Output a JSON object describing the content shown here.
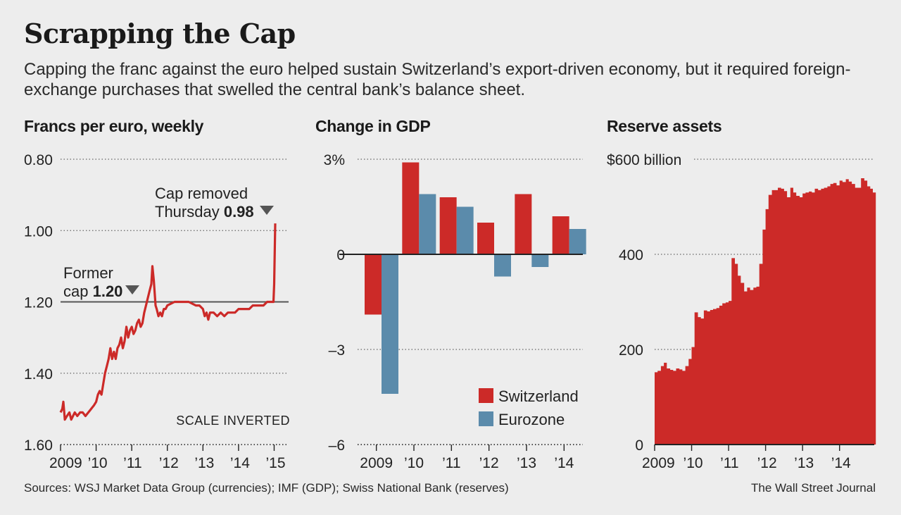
{
  "title": "Scrapping the Cap",
  "subtitle": "Capping the franc against the euro helped sustain Switzerland’s export-driven economy, but it required foreign-exchange purchases that swelled the central bank’s balance sheet.",
  "colors": {
    "switzerland": "#cc2a28",
    "eurozone": "#5b8bab",
    "axis": "#222222",
    "grid": "#666666",
    "cap_line": "#555555"
  },
  "footer": {
    "source": "Sources: WSJ Market Data Group (currencies); IMF (GDP); Swiss National Bank (reserves)",
    "credit": "The Wall Street Journal"
  },
  "chart_data": [
    {
      "id": "francs",
      "type": "line",
      "title": "Francs per euro, weekly",
      "y_inverted": true,
      "ylim": [
        0.8,
        1.6
      ],
      "yticks": [
        {
          "value": 0.8,
          "label": "0.80"
        },
        {
          "value": 1.0,
          "label": "1.00"
        },
        {
          "value": 1.2,
          "label": "1.20"
        },
        {
          "value": 1.4,
          "label": "1.40"
        },
        {
          "value": 1.6,
          "label": "1.60"
        }
      ],
      "xlim": [
        2009.0,
        2015.05
      ],
      "xticks": [
        {
          "value": 2009,
          "label": "2009"
        },
        {
          "value": 2010,
          "label": "’10"
        },
        {
          "value": 2011,
          "label": "’11"
        },
        {
          "value": 2012,
          "label": "’12"
        },
        {
          "value": 2013,
          "label": "’13"
        },
        {
          "value": 2014,
          "label": "’14"
        },
        {
          "value": 2015,
          "label": "’15"
        }
      ],
      "cap_value": 1.2,
      "scale_note": "SCALE INVERTED",
      "annotations": {
        "removed_line1": "Cap removed",
        "removed_line2": "Thursday",
        "removed_value": "0.98",
        "former_line1": "Former",
        "former_line2": "cap",
        "former_value": "1.20"
      },
      "points": [
        [
          2009.0,
          1.51
        ],
        [
          2009.05,
          1.5
        ],
        [
          2009.08,
          1.48
        ],
        [
          2009.12,
          1.53
        ],
        [
          2009.18,
          1.52
        ],
        [
          2009.25,
          1.51
        ],
        [
          2009.3,
          1.53
        ],
        [
          2009.35,
          1.52
        ],
        [
          2009.4,
          1.51
        ],
        [
          2009.47,
          1.52
        ],
        [
          2009.55,
          1.51
        ],
        [
          2009.62,
          1.51
        ],
        [
          2009.7,
          1.52
        ],
        [
          2009.78,
          1.51
        ],
        [
          2009.86,
          1.5
        ],
        [
          2009.94,
          1.49
        ],
        [
          2010.0,
          1.48
        ],
        [
          2010.05,
          1.46
        ],
        [
          2010.1,
          1.45
        ],
        [
          2010.15,
          1.46
        ],
        [
          2010.2,
          1.43
        ],
        [
          2010.25,
          1.4
        ],
        [
          2010.3,
          1.38
        ],
        [
          2010.35,
          1.36
        ],
        [
          2010.4,
          1.33
        ],
        [
          2010.45,
          1.36
        ],
        [
          2010.5,
          1.34
        ],
        [
          2010.55,
          1.36
        ],
        [
          2010.6,
          1.33
        ],
        [
          2010.65,
          1.32
        ],
        [
          2010.7,
          1.3
        ],
        [
          2010.75,
          1.33
        ],
        [
          2010.8,
          1.31
        ],
        [
          2010.85,
          1.27
        ],
        [
          2010.9,
          1.3
        ],
        [
          2010.95,
          1.28
        ],
        [
          2011.0,
          1.27
        ],
        [
          2011.05,
          1.29
        ],
        [
          2011.1,
          1.28
        ],
        [
          2011.15,
          1.26
        ],
        [
          2011.2,
          1.25
        ],
        [
          2011.25,
          1.27
        ],
        [
          2011.3,
          1.26
        ],
        [
          2011.35,
          1.23
        ],
        [
          2011.4,
          1.21
        ],
        [
          2011.45,
          1.19
        ],
        [
          2011.5,
          1.17
        ],
        [
          2011.55,
          1.15
        ],
        [
          2011.58,
          1.1
        ],
        [
          2011.62,
          1.14
        ],
        [
          2011.67,
          1.21
        ],
        [
          2011.7,
          1.22
        ],
        [
          2011.75,
          1.24
        ],
        [
          2011.8,
          1.23
        ],
        [
          2011.85,
          1.24
        ],
        [
          2011.9,
          1.22
        ],
        [
          2011.95,
          1.22
        ],
        [
          2012.0,
          1.21
        ],
        [
          2012.2,
          1.2
        ],
        [
          2012.4,
          1.2
        ],
        [
          2012.6,
          1.2
        ],
        [
          2012.8,
          1.21
        ],
        [
          2012.9,
          1.21
        ],
        [
          2013.0,
          1.22
        ],
        [
          2013.05,
          1.24
        ],
        [
          2013.1,
          1.23
        ],
        [
          2013.15,
          1.25
        ],
        [
          2013.2,
          1.23
        ],
        [
          2013.3,
          1.23
        ],
        [
          2013.4,
          1.24
        ],
        [
          2013.5,
          1.23
        ],
        [
          2013.6,
          1.24
        ],
        [
          2013.7,
          1.23
        ],
        [
          2013.8,
          1.23
        ],
        [
          2013.9,
          1.23
        ],
        [
          2014.0,
          1.22
        ],
        [
          2014.1,
          1.22
        ],
        [
          2014.2,
          1.22
        ],
        [
          2014.3,
          1.22
        ],
        [
          2014.4,
          1.21
        ],
        [
          2014.5,
          1.21
        ],
        [
          2014.6,
          1.21
        ],
        [
          2014.7,
          1.21
        ],
        [
          2014.8,
          1.2
        ],
        [
          2014.9,
          1.2
        ],
        [
          2014.96,
          1.2
        ],
        [
          2014.98,
          1.2
        ],
        [
          2015.0,
          1.15
        ],
        [
          2015.03,
          0.98
        ]
      ]
    },
    {
      "id": "gdp",
      "type": "bar",
      "title": "Change in GDP",
      "ylim": [
        -6,
        3
      ],
      "yticks": [
        {
          "value": 3,
          "label": "3%"
        },
        {
          "value": 0,
          "label": "0"
        },
        {
          "value": -3,
          "label": "–3"
        },
        {
          "value": -6,
          "label": "–6"
        }
      ],
      "categories": [
        "2009",
        "’10",
        "’11",
        "’12",
        "’13",
        "’14"
      ],
      "series": [
        {
          "name": "Switzerland",
          "values": [
            -1.9,
            2.9,
            1.8,
            1.0,
            1.9,
            1.2
          ]
        },
        {
          "name": "Eurozone",
          "values": [
            -4.4,
            1.9,
            1.5,
            -0.7,
            -0.4,
            0.8
          ]
        }
      ],
      "legend_position": "bottom-right"
    },
    {
      "id": "reserves",
      "type": "area",
      "title": "Reserve assets",
      "ylim": [
        0,
        600
      ],
      "yticks": [
        {
          "value": 600,
          "label": "$600 billion"
        },
        {
          "value": 400,
          "label": "400"
        },
        {
          "value": 200,
          "label": "200"
        },
        {
          "value": 0,
          "label": "0"
        }
      ],
      "xlim": [
        2009.0,
        2014.9
      ],
      "xticks": [
        {
          "value": 2009,
          "label": "2009"
        },
        {
          "value": 2010,
          "label": "’10"
        },
        {
          "value": 2011,
          "label": "’11"
        },
        {
          "value": 2012,
          "label": "’12"
        },
        {
          "value": 2013,
          "label": "’13"
        },
        {
          "value": 2014,
          "label": "’14"
        }
      ],
      "points": [
        [
          2009.0,
          152
        ],
        [
          2009.08,
          155
        ],
        [
          2009.17,
          165
        ],
        [
          2009.25,
          172
        ],
        [
          2009.33,
          160
        ],
        [
          2009.42,
          157
        ],
        [
          2009.5,
          155
        ],
        [
          2009.58,
          160
        ],
        [
          2009.67,
          158
        ],
        [
          2009.75,
          155
        ],
        [
          2009.83,
          165
        ],
        [
          2009.92,
          180
        ],
        [
          2010.0,
          205
        ],
        [
          2010.08,
          278
        ],
        [
          2010.17,
          268
        ],
        [
          2010.25,
          265
        ],
        [
          2010.33,
          282
        ],
        [
          2010.42,
          280
        ],
        [
          2010.5,
          283
        ],
        [
          2010.58,
          285
        ],
        [
          2010.67,
          287
        ],
        [
          2010.75,
          292
        ],
        [
          2010.83,
          297
        ],
        [
          2010.92,
          299
        ],
        [
          2011.0,
          302
        ],
        [
          2011.08,
          392
        ],
        [
          2011.17,
          380
        ],
        [
          2011.25,
          355
        ],
        [
          2011.33,
          340
        ],
        [
          2011.42,
          322
        ],
        [
          2011.5,
          330
        ],
        [
          2011.58,
          325
        ],
        [
          2011.67,
          330
        ],
        [
          2011.75,
          332
        ],
        [
          2011.83,
          380
        ],
        [
          2011.92,
          452
        ],
        [
          2012.0,
          495
        ],
        [
          2012.08,
          525
        ],
        [
          2012.17,
          535
        ],
        [
          2012.25,
          535
        ],
        [
          2012.33,
          540
        ],
        [
          2012.42,
          538
        ],
        [
          2012.5,
          533
        ],
        [
          2012.58,
          520
        ],
        [
          2012.67,
          540
        ],
        [
          2012.75,
          530
        ],
        [
          2012.83,
          523
        ],
        [
          2012.92,
          520
        ],
        [
          2013.0,
          528
        ],
        [
          2013.08,
          530
        ],
        [
          2013.17,
          532
        ],
        [
          2013.25,
          530
        ],
        [
          2013.33,
          538
        ],
        [
          2013.42,
          535
        ],
        [
          2013.5,
          538
        ],
        [
          2013.58,
          540
        ],
        [
          2013.67,
          543
        ],
        [
          2013.75,
          548
        ],
        [
          2013.83,
          550
        ],
        [
          2013.92,
          545
        ],
        [
          2014.0,
          555
        ],
        [
          2014.08,
          552
        ],
        [
          2014.17,
          558
        ],
        [
          2014.25,
          553
        ],
        [
          2014.33,
          548
        ],
        [
          2014.42,
          540
        ],
        [
          2014.5,
          540
        ],
        [
          2014.58,
          560
        ],
        [
          2014.67,
          555
        ],
        [
          2014.75,
          543
        ],
        [
          2014.83,
          538
        ],
        [
          2014.9,
          530
        ]
      ]
    }
  ]
}
